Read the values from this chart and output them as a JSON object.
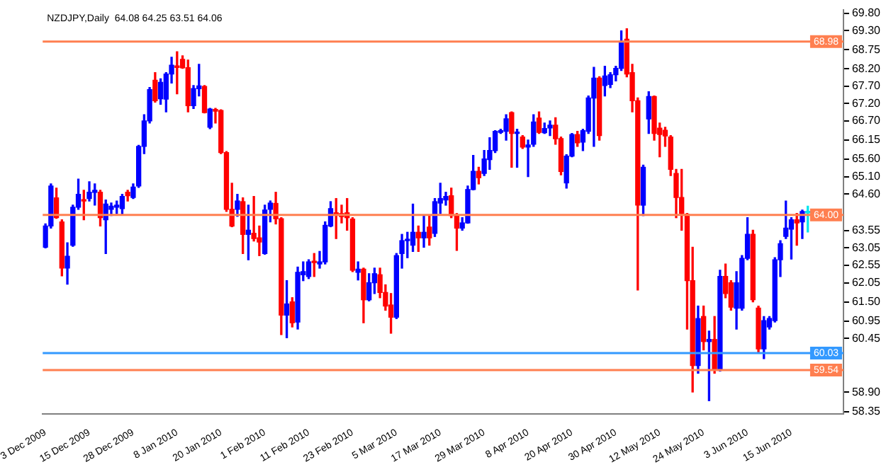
{
  "chart_data": {
    "type": "candlestick",
    "title": "NZDJPY,Daily  64.08 64.25 63.51 64.06",
    "categories": [
      "3 Dec 2009",
      null,
      null,
      null,
      null,
      null,
      null,
      null,
      "15 Dec 2009",
      null,
      null,
      null,
      null,
      null,
      null,
      null,
      "28 Dec 2009",
      null,
      null,
      null,
      null,
      null,
      null,
      null,
      "8 Jan 2010",
      null,
      null,
      null,
      null,
      null,
      null,
      null,
      "20 Jan 2010",
      null,
      null,
      null,
      null,
      null,
      null,
      null,
      "1 Feb 2010",
      null,
      null,
      null,
      null,
      null,
      null,
      null,
      "11 Feb 2010",
      null,
      null,
      null,
      null,
      null,
      null,
      null,
      "23 Feb 2010",
      null,
      null,
      null,
      null,
      null,
      null,
      null,
      "5 Mar 2010",
      null,
      null,
      null,
      null,
      null,
      null,
      null,
      "17 Mar 2010",
      null,
      null,
      null,
      null,
      null,
      null,
      null,
      "29 Mar 2010",
      null,
      null,
      null,
      null,
      null,
      null,
      null,
      "8 Apr 2010",
      null,
      null,
      null,
      null,
      null,
      null,
      null,
      "20 Apr 2010",
      null,
      null,
      null,
      null,
      null,
      null,
      null,
      "30 Apr 2010",
      null,
      null,
      null,
      null,
      null,
      null,
      null,
      "12 May 2010",
      null,
      null,
      null,
      null,
      null,
      null,
      null,
      "24 May 2010",
      null,
      null,
      null,
      null,
      null,
      null,
      null,
      "3 Jun 2010",
      null,
      null,
      null,
      null,
      null,
      null,
      null,
      "15 Jun 2010",
      null,
      null,
      null
    ],
    "ohlc": [
      [
        63.07,
        63.74,
        63.05,
        63.68
      ],
      [
        63.68,
        64.89,
        63.62,
        64.83
      ],
      [
        64.49,
        64.77,
        63.9,
        63.92
      ],
      [
        63.8,
        63.86,
        62.25,
        62.47
      ],
      [
        62.47,
        63.2,
        62.01,
        62.81
      ],
      [
        63.13,
        64.28,
        63.1,
        64.22
      ],
      [
        64.22,
        65.03,
        64.16,
        64.59
      ],
      [
        64.43,
        64.71,
        63.86,
        64.4
      ],
      [
        64.47,
        64.95,
        64.4,
        64.65
      ],
      [
        64.65,
        64.89,
        64.28,
        64.71
      ],
      [
        64.65,
        64.71,
        63.68,
        63.92
      ],
      [
        63.86,
        64.43,
        62.89,
        64.31
      ],
      [
        64.16,
        64.34,
        63.98,
        64.25
      ],
      [
        64.22,
        64.4,
        64.04,
        64.28
      ],
      [
        64.18,
        64.59,
        64.0,
        64.53
      ],
      [
        64.65,
        64.71,
        64.4,
        64.55
      ],
      [
        64.5,
        64.89,
        64.47,
        64.8
      ],
      [
        64.83,
        66.0,
        64.79,
        65.97
      ],
      [
        65.97,
        66.88,
        65.76,
        66.7
      ],
      [
        66.7,
        67.66,
        66.64,
        67.6
      ],
      [
        67.87,
        68.09,
        67.24,
        67.28
      ],
      [
        67.34,
        67.91,
        67.18,
        67.81
      ],
      [
        67.33,
        68.09,
        66.96,
        68.05
      ],
      [
        68.05,
        68.53,
        67.79,
        68.3
      ],
      [
        68.26,
        68.69,
        67.48,
        68.24
      ],
      [
        68.47,
        68.57,
        68.21,
        68.23
      ],
      [
        68.23,
        68.45,
        66.96,
        67.14
      ],
      [
        67.14,
        67.72,
        67.06,
        67.63
      ],
      [
        67.63,
        68.33,
        67.42,
        67.71
      ],
      [
        67.69,
        67.72,
        66.93,
        66.94
      ],
      [
        66.52,
        67.06,
        66.48,
        67.04
      ],
      [
        67.03,
        67.06,
        66.64,
        66.98
      ],
      [
        67.0,
        67.02,
        65.76,
        65.79
      ],
      [
        65.79,
        65.82,
        64.1,
        64.16
      ],
      [
        64.16,
        64.91,
        63.66,
        63.68
      ],
      [
        64.16,
        64.59,
        63.96,
        64.4
      ],
      [
        64.38,
        64.49,
        62.89,
        63.44
      ],
      [
        63.44,
        64.28,
        62.71,
        63.56
      ],
      [
        63.47,
        64.53,
        63.25,
        63.32
      ],
      [
        63.34,
        63.68,
        62.83,
        63.22
      ],
      [
        62.89,
        64.28,
        62.87,
        64.14
      ],
      [
        64.16,
        64.4,
        63.8,
        64.34
      ],
      [
        64.33,
        64.65,
        63.74,
        63.89
      ],
      [
        63.89,
        63.92,
        60.56,
        61.12
      ],
      [
        61.12,
        62.11,
        60.47,
        61.44
      ],
      [
        61.5,
        61.62,
        60.78,
        60.9
      ],
      [
        60.92,
        62.5,
        60.72,
        62.35
      ],
      [
        62.28,
        62.65,
        62.11,
        62.37
      ],
      [
        62.23,
        62.71,
        62.17,
        62.65
      ],
      [
        62.65,
        62.89,
        62.23,
        62.63
      ],
      [
        62.59,
        62.95,
        62.47,
        62.65
      ],
      [
        62.65,
        63.8,
        62.59,
        63.7
      ],
      [
        63.68,
        64.38,
        63.66,
        64.18
      ],
      [
        64.06,
        64.47,
        63.32,
        64.01
      ],
      [
        64.04,
        64.28,
        63.77,
        63.95
      ],
      [
        64.06,
        64.47,
        63.56,
        63.92
      ],
      [
        63.88,
        63.92,
        62.37,
        62.41
      ],
      [
        62.35,
        62.65,
        62.13,
        62.44
      ],
      [
        62.44,
        62.47,
        60.9,
        61.56
      ],
      [
        61.56,
        62.31,
        61.53,
        62.05
      ],
      [
        62.05,
        62.47,
        61.74,
        62.31
      ],
      [
        62.28,
        62.47,
        61.62,
        61.77
      ],
      [
        61.77,
        61.99,
        61.26,
        61.38
      ],
      [
        61.41,
        61.74,
        60.6,
        61.06
      ],
      [
        61.06,
        62.89,
        61.02,
        62.83
      ],
      [
        62.89,
        63.44,
        62.47,
        63.26
      ],
      [
        63.26,
        63.5,
        62.77,
        63.27
      ],
      [
        63.13,
        64.31,
        62.95,
        63.5
      ],
      [
        63.5,
        63.68,
        62.95,
        63.34
      ],
      [
        63.34,
        63.98,
        63.07,
        63.5
      ],
      [
        63.65,
        63.98,
        63.13,
        63.34
      ],
      [
        63.47,
        64.47,
        63.38,
        64.38
      ],
      [
        64.34,
        64.91,
        64.04,
        64.47
      ],
      [
        64.43,
        64.65,
        64.28,
        64.53
      ],
      [
        64.55,
        64.77,
        63.92,
        63.98
      ],
      [
        63.96,
        64.04,
        62.98,
        63.62
      ],
      [
        63.62,
        63.92,
        63.56,
        63.77
      ],
      [
        63.77,
        64.83,
        63.76,
        64.73
      ],
      [
        64.73,
        65.71,
        64.72,
        65.25
      ],
      [
        65.25,
        65.37,
        64.89,
        65.07
      ],
      [
        65.19,
        65.85,
        65.13,
        65.61
      ],
      [
        65.59,
        66.22,
        65.31,
        65.85
      ],
      [
        65.85,
        66.42,
        65.79,
        66.4
      ],
      [
        66.37,
        66.46,
        66.34,
        66.42
      ],
      [
        66.4,
        66.88,
        66.15,
        66.76
      ],
      [
        66.94,
        66.96,
        65.37,
        66.34
      ],
      [
        66.34,
        66.46,
        65.37,
        66.38
      ],
      [
        66.24,
        66.28,
        65.91,
        65.95
      ],
      [
        65.95,
        66.15,
        65.1,
        66.01
      ],
      [
        66.03,
        66.88,
        65.97,
        66.67
      ],
      [
        66.78,
        66.96,
        66.34,
        66.37
      ],
      [
        66.36,
        66.64,
        66.34,
        66.48
      ],
      [
        66.5,
        66.7,
        66.28,
        66.58
      ],
      [
        66.58,
        66.79,
        66.03,
        66.19
      ],
      [
        66.19,
        66.24,
        65.15,
        65.25
      ],
      [
        64.92,
        65.73,
        64.77,
        65.69
      ],
      [
        65.69,
        66.34,
        65.67,
        66.31
      ],
      [
        66.31,
        66.4,
        65.97,
        66.07
      ],
      [
        66.09,
        66.46,
        65.85,
        66.42
      ],
      [
        66.4,
        67.42,
        66.34,
        67.36
      ],
      [
        67.36,
        68.24,
        65.97,
        67.93
      ],
      [
        67.93,
        67.97,
        66.15,
        66.28
      ],
      [
        67.72,
        68.27,
        67.42,
        67.99
      ],
      [
        67.75,
        68.09,
        67.66,
        68.03
      ],
      [
        68.03,
        68.27,
        67.85,
        68.21
      ],
      [
        68.21,
        69.29,
        68.15,
        68.99
      ],
      [
        69.05,
        69.35,
        67.97,
        68.05
      ],
      [
        68.09,
        68.33,
        66.96,
        67.28
      ],
      [
        67.28,
        67.36,
        61.84,
        64.28
      ],
      [
        64.28,
        65.43,
        63.98,
        65.37
      ],
      [
        66.76,
        67.54,
        66.34,
        67.4
      ],
      [
        67.4,
        67.42,
        66.15,
        66.34
      ],
      [
        66.49,
        66.64,
        65.67,
        66.31
      ],
      [
        66.43,
        66.52,
        65.97,
        66.27
      ],
      [
        66.24,
        66.28,
        65.13,
        65.31
      ],
      [
        65.19,
        65.31,
        63.92,
        64.5
      ],
      [
        64.5,
        65.31,
        63.56,
        64.04
      ],
      [
        64.02,
        64.04,
        60.72,
        62.11
      ],
      [
        62.11,
        63.07,
        58.91,
        59.67
      ],
      [
        59.67,
        61.38,
        59.45,
        61.02
      ],
      [
        61.08,
        61.38,
        60.12,
        60.36
      ],
      [
        60.36,
        60.66,
        58.66,
        60.42
      ],
      [
        60.42,
        61.08,
        59.45,
        59.55
      ],
      [
        59.55,
        62.41,
        59.51,
        62.23
      ],
      [
        62.23,
        62.59,
        61.62,
        61.74
      ],
      [
        62.05,
        62.11,
        61.26,
        61.35
      ],
      [
        61.32,
        62.37,
        60.72,
        62.05
      ],
      [
        61.32,
        62.83,
        61.26,
        62.75
      ],
      [
        62.75,
        63.92,
        62.71,
        63.44
      ],
      [
        63.44,
        63.56,
        61.5,
        61.56
      ],
      [
        61.32,
        61.38,
        60.05,
        60.15
      ],
      [
        60.15,
        61.08,
        59.87,
        60.96
      ],
      [
        60.78,
        61.08,
        60.72,
        61.02
      ],
      [
        60.96,
        62.77,
        60.92,
        62.71
      ],
      [
        62.71,
        63.26,
        62.23,
        63.17
      ],
      [
        63.38,
        64.4,
        63.32,
        63.62
      ],
      [
        63.59,
        63.92,
        62.73,
        63.86
      ],
      [
        63.86,
        64.04,
        63.13,
        63.77
      ],
      [
        63.8,
        64.14,
        63.32,
        64.1
      ],
      [
        64.08,
        64.25,
        63.51,
        64.06
      ]
    ],
    "colors": [
      "#0000ff",
      "#0000ff",
      "#ff0000",
      "#ff0000",
      "#0000ff",
      "#0000ff",
      "#0000ff",
      "#ff0000",
      "#0000ff",
      "#0000ff",
      "#ff0000",
      "#0000ff",
      "#0000ff",
      "#0000ff",
      "#0000ff",
      "#ff0000",
      "#0000ff",
      "#0000ff",
      "#0000ff",
      "#0000ff",
      "#ff0000",
      "#0000ff",
      "#0000ff",
      "#0000ff",
      "#ff0000",
      "#ff0000",
      "#ff0000",
      "#0000ff",
      "#0000ff",
      "#ff0000",
      "#0000ff",
      "#ff0000",
      "#ff0000",
      "#ff0000",
      "#ff0000",
      "#0000ff",
      "#ff0000",
      "#0000ff",
      "#ff0000",
      "#ff0000",
      "#0000ff",
      "#0000ff",
      "#ff0000",
      "#ff0000",
      "#0000ff",
      "#ff0000",
      "#0000ff",
      "#0000ff",
      "#0000ff",
      "#ff0000",
      "#0000ff",
      "#0000ff",
      "#0000ff",
      "#ff0000",
      "#ff0000",
      "#ff0000",
      "#ff0000",
      "#0000ff",
      "#ff0000",
      "#0000ff",
      "#0000ff",
      "#ff0000",
      "#ff0000",
      "#ff0000",
      "#0000ff",
      "#0000ff",
      "#0000ff",
      "#0000ff",
      "#ff0000",
      "#0000ff",
      "#ff0000",
      "#0000ff",
      "#0000ff",
      "#0000ff",
      "#ff0000",
      "#ff0000",
      "#0000ff",
      "#0000ff",
      "#0000ff",
      "#ff0000",
      "#0000ff",
      "#0000ff",
      "#0000ff",
      "#0000ff",
      "#0000ff",
      "#ff0000",
      "#0000ff",
      "#ff0000",
      "#0000ff",
      "#0000ff",
      "#ff0000",
      "#0000ff",
      "#0000ff",
      "#ff0000",
      "#ff0000",
      "#0000ff",
      "#0000ff",
      "#ff0000",
      "#0000ff",
      "#0000ff",
      "#0000ff",
      "#ff0000",
      "#0000ff",
      "#0000ff",
      "#0000ff",
      "#0000ff",
      "#ff0000",
      "#ff0000",
      "#ff0000",
      "#0000ff",
      "#0000ff",
      "#ff0000",
      "#ff0000",
      "#ff0000",
      "#ff0000",
      "#ff0000",
      "#ff0000",
      "#ff0000",
      "#ff0000",
      "#0000ff",
      "#ff0000",
      "#0000ff",
      "#ff0000",
      "#0000ff",
      "#ff0000",
      "#ff0000",
      "#0000ff",
      "#0000ff",
      "#0000ff",
      "#ff0000",
      "#ff0000",
      "#0000ff",
      "#0000ff",
      "#0000ff",
      "#0000ff",
      "#0000ff",
      "#0000ff",
      "#ff0000",
      "#0000ff",
      "#00e5ee"
    ],
    "ylim": [
      58.28,
      69.9
    ],
    "yticks": [
      {
        "value": 69.8,
        "label": "69.80"
      },
      {
        "value": 69.3,
        "label": "69.30"
      },
      {
        "value": 68.75,
        "label": "68.75"
      },
      {
        "value": 68.2,
        "label": "68.20"
      },
      {
        "value": 67.7,
        "label": "67.70"
      },
      {
        "value": 67.2,
        "label": "67.20"
      },
      {
        "value": 66.7,
        "label": "66.70"
      },
      {
        "value": 66.15,
        "label": "66.15"
      },
      {
        "value": 65.6,
        "label": "65.60"
      },
      {
        "value": 65.1,
        "label": "65.10"
      },
      {
        "value": 64.6,
        "label": "64.60"
      },
      {
        "value": 63.55,
        "label": "63.55"
      },
      {
        "value": 63.05,
        "label": "63.05"
      },
      {
        "value": 62.55,
        "label": "62.55"
      },
      {
        "value": 62.05,
        "label": "62.05"
      },
      {
        "value": 61.5,
        "label": "61.50"
      },
      {
        "value": 60.95,
        "label": "60.95"
      },
      {
        "value": 60.45,
        "label": "60.45"
      },
      {
        "value": 58.9,
        "label": "58.90"
      },
      {
        "value": 58.35,
        "label": "58.35"
      }
    ],
    "ref_lines": [
      {
        "axis": "y",
        "value": 68.98,
        "label": "68.98",
        "color": "#ff7f50"
      },
      {
        "axis": "y",
        "value": 64.0,
        "label": "64.00",
        "color": "#ff7f50"
      },
      {
        "axis": "y",
        "value": 60.03,
        "label": "60.03",
        "color": "#3399ff"
      },
      {
        "axis": "y",
        "value": 59.54,
        "label": "59.54",
        "color": "#ff7f50"
      }
    ],
    "grid": false
  }
}
